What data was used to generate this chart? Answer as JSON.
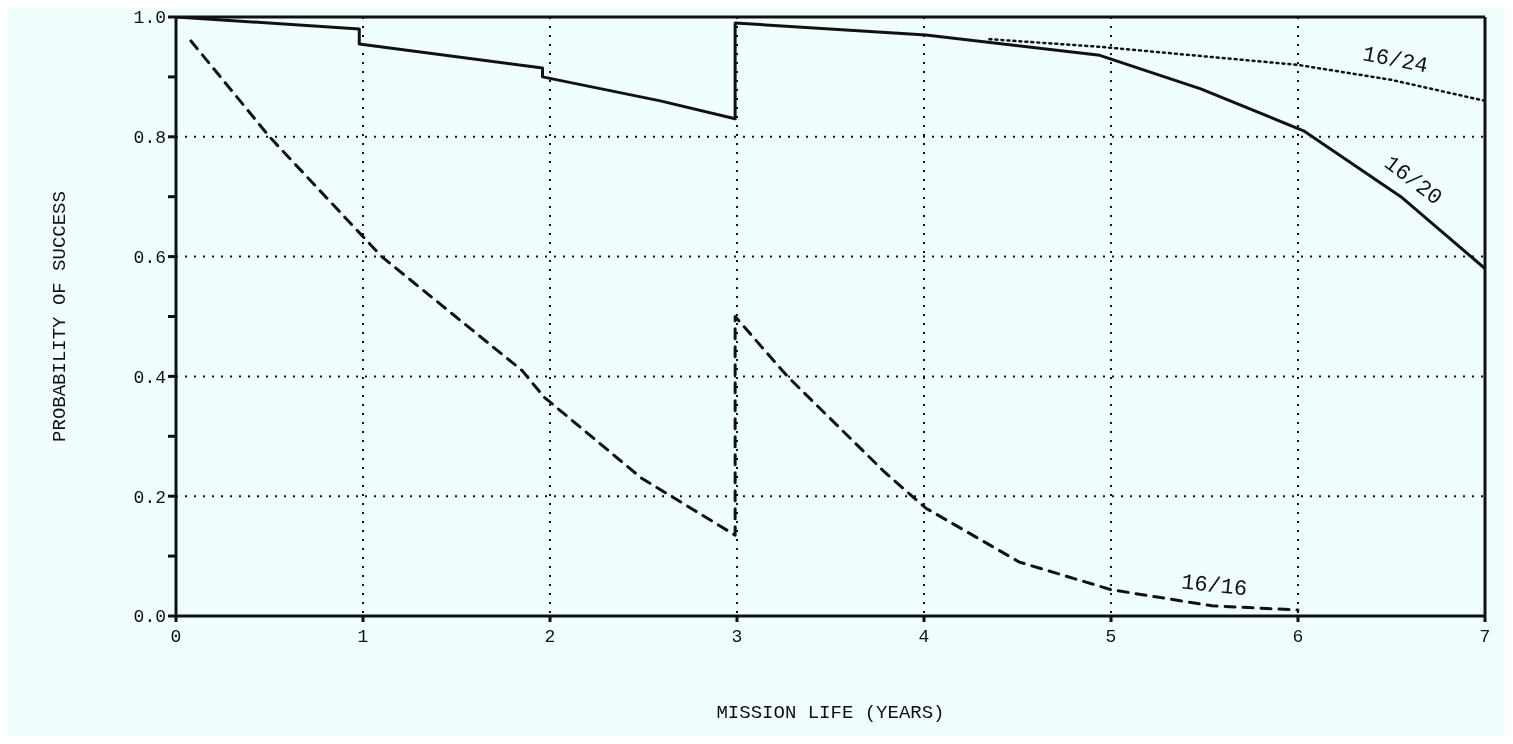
{
  "chart_data": {
    "type": "line",
    "xlabel": "MISSION LIFE (YEARS)",
    "ylabel": "PROBABILITY OF SUCCESS",
    "xlim": [
      0,
      7
    ],
    "xticks": [
      0,
      1,
      2,
      3,
      4,
      5,
      6,
      7
    ],
    "ylim": [
      0,
      1
    ],
    "yticks": [
      {
        "value": 0,
        "label": "0.0"
      },
      {
        "value": 0.1,
        "label": null
      },
      {
        "value": 0.2,
        "label": "0.2"
      },
      {
        "value": 0.3,
        "label": null
      },
      {
        "value": 0.4,
        "label": "0.4"
      },
      {
        "value": 0.5,
        "label": null
      },
      {
        "value": 0.6,
        "label": "0.6"
      },
      {
        "value": 0.7,
        "label": null
      },
      {
        "value": 0.8,
        "label": "0.8"
      },
      {
        "value": 0.9,
        "label": null
      },
      {
        "value": 1,
        "label": "1.0"
      }
    ],
    "grid": true,
    "legend": false,
    "marker": "none",
    "series": [
      {
        "name": "16/24",
        "color": "#111111",
        "line_style": "dotted",
        "x": [
          4.35,
          4.95,
          6.0,
          6.5,
          7.0
        ],
        "values": [
          0.963,
          0.95,
          0.92,
          0.895,
          0.86
        ]
      },
      {
        "name": "16/20",
        "color": "#111111",
        "line_style": "solid",
        "x": [
          0,
          0.98,
          0.98,
          1.96,
          1.96,
          2.59,
          2.99,
          2.99,
          4.01,
          4.94,
          5.48,
          6.03,
          6.55,
          7.0
        ],
        "values": [
          1.0,
          0.98,
          0.955,
          0.915,
          0.9,
          0.86,
          0.83,
          0.99,
          0.97,
          0.936,
          0.88,
          0.81,
          0.7,
          0.58
        ]
      },
      {
        "name": "16/16",
        "color": "#111111",
        "line_style": "dashed",
        "x": [
          0.08,
          0.5,
          0.98,
          1.1,
          1.85,
          1.97,
          2.49,
          2.99,
          2.99,
          3.27,
          3.79,
          4.01,
          4.51,
          5.0,
          5.54,
          6.0
        ],
        "values": [
          0.96,
          0.8,
          0.64,
          0.6,
          0.41,
          0.365,
          0.23,
          0.135,
          0.5,
          0.4,
          0.24,
          0.18,
          0.09,
          0.044,
          0.017,
          0.01
        ]
      }
    ]
  }
}
